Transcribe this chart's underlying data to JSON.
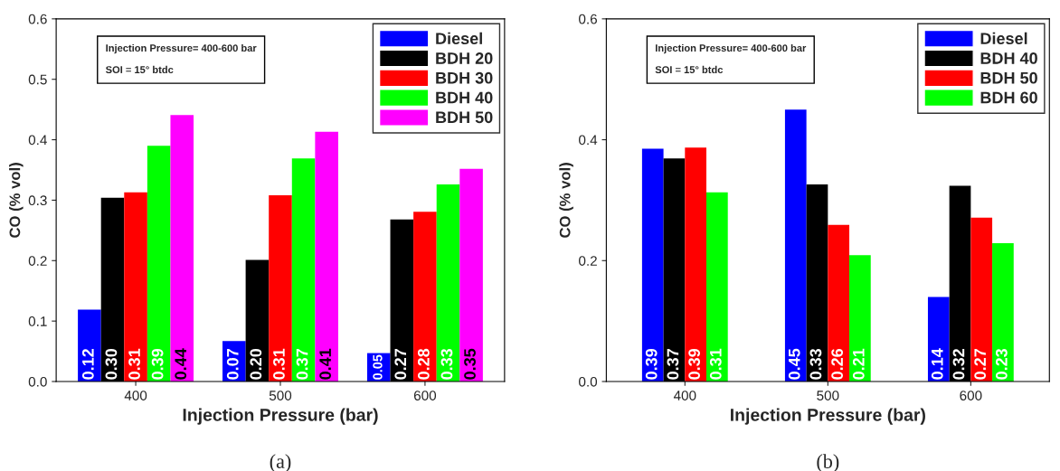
{
  "chart_data": [
    {
      "type": "bar",
      "categories": [
        "400",
        "500",
        "600"
      ],
      "xlabel": "Injection Pressure (bar)",
      "ylabel": "CO (% vol)",
      "ylim": [
        0,
        0.6
      ],
      "yticks": [
        {
          "value": 0,
          "label": "0.0"
        },
        0.1,
        0.2,
        0.3,
        0.4,
        0.5,
        0.6
      ],
      "legend": "top right",
      "grid": false,
      "annotations": [
        "Injection Pressure= 400-600 bar",
        "SOI = 15° btdc",
        "(a)"
      ],
      "series": [
        {
          "name": "Diesel",
          "color": "#0000ff",
          "values": [
            0.119,
            0.067,
            0.047
          ],
          "value_labels": [
            "0.12",
            "0.07",
            "0.05"
          ]
        },
        {
          "name": "BDH 20",
          "color": "#000000",
          "values": [
            0.304,
            0.201,
            0.268
          ],
          "value_labels": [
            "0.30",
            "0.20",
            "0.27"
          ]
        },
        {
          "name": "BDH 30",
          "color": "#ff0000",
          "values": [
            0.313,
            0.308,
            0.281
          ],
          "value_labels": [
            "0.31",
            "0.31",
            "0.28"
          ]
        },
        {
          "name": "BDH 40",
          "color": "#00ff00",
          "values": [
            0.39,
            0.369,
            0.326
          ],
          "value_labels": [
            "0.39",
            "0.37",
            "0.33"
          ]
        },
        {
          "name": "BDH 50",
          "color": "#ff00ff",
          "values": [
            0.441,
            0.413,
            0.352
          ],
          "value_labels": [
            "0.44",
            "0.41",
            "0.35"
          ]
        }
      ]
    },
    {
      "type": "bar",
      "categories": [
        "400",
        "500",
        "600"
      ],
      "xlabel": "Injection Pressure (bar)",
      "ylabel": "CO (% vol)",
      "ylim": [
        0,
        0.6
      ],
      "yticks": [
        {
          "value": 0,
          "label": "0.0"
        },
        0.2,
        0.4,
        0.6
      ],
      "legend": "top right",
      "grid": false,
      "annotations": [
        "Injection Pressure= 400-600 bar",
        "SOI = 15° btdc",
        "(b)"
      ],
      "series": [
        {
          "name": "Diesel",
          "color": "#0000ff",
          "values": [
            0.385,
            0.45,
            0.14
          ],
          "value_labels": [
            "0.39",
            "0.45",
            "0.14"
          ]
        },
        {
          "name": "BDH 40",
          "color": "#000000",
          "values": [
            0.369,
            0.326,
            0.324
          ],
          "value_labels": [
            "0.37",
            "0.33",
            "0.32"
          ]
        },
        {
          "name": "BDH 50",
          "color": "#ff0000",
          "values": [
            0.387,
            0.259,
            0.271
          ],
          "value_labels": [
            "0.39",
            "0.26",
            "0.27"
          ]
        },
        {
          "name": "BDH 60",
          "color": "#00ff00",
          "values": [
            0.313,
            0.209,
            0.229
          ],
          "value_labels": [
            "0.31",
            "0.21",
            "0.23"
          ]
        }
      ]
    }
  ]
}
